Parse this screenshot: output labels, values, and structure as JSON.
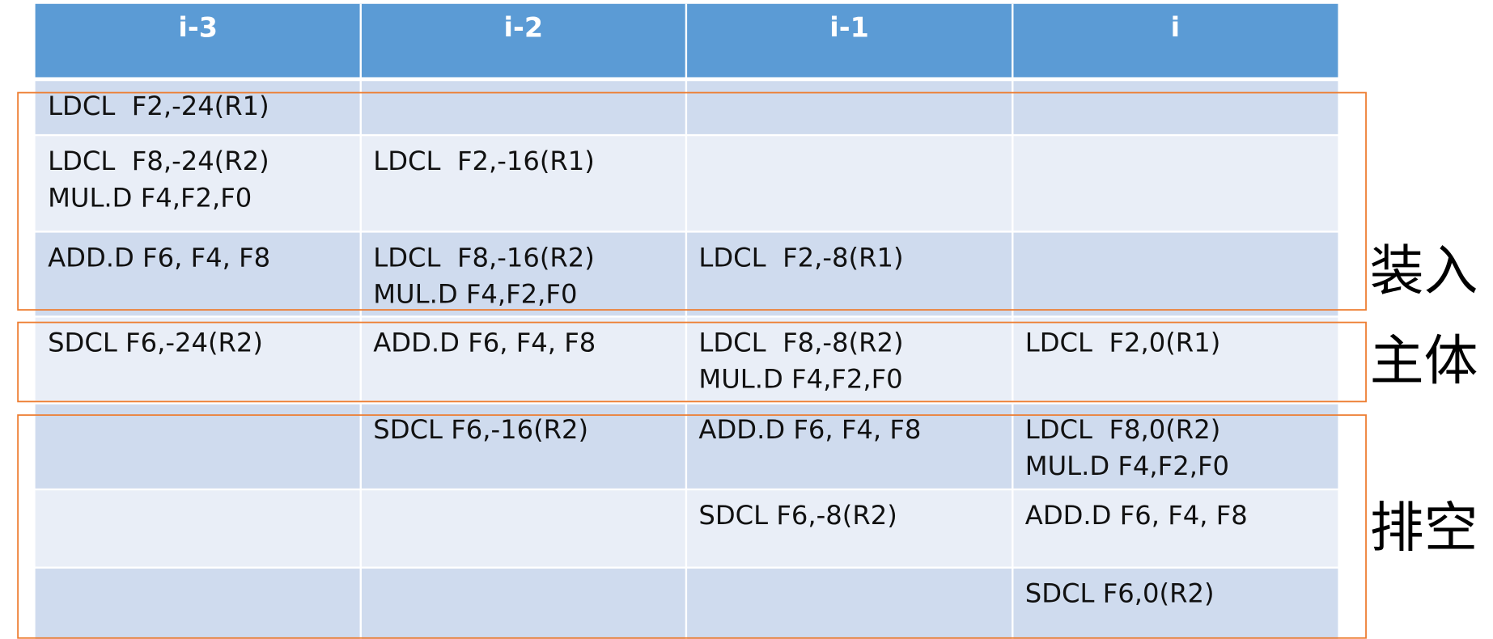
{
  "table": {
    "header": [
      "i-3",
      "i-2",
      "i-1",
      "i"
    ],
    "rows": [
      [
        [
          "LDCL  F2,-24(R1)"
        ],
        [],
        [],
        []
      ],
      [
        [
          "LDCL  F8,-24(R2)",
          "MUL.D F4,F2,F0"
        ],
        [
          "LDCL  F2,-16(R1)"
        ],
        [],
        []
      ],
      [
        [
          "ADD.D F6, F4, F8"
        ],
        [
          "LDCL  F8,-16(R2)",
          "MUL.D F4,F2,F0"
        ],
        [
          "LDCL  F2,-8(R1)"
        ],
        []
      ],
      [
        [
          "SDCL F6,-24(R2)"
        ],
        [
          "ADD.D F6, F4, F8"
        ],
        [
          "LDCL  F8,-8(R2)",
          "MUL.D F4,F2,F0"
        ],
        [
          "LDCL  F2,0(R1)"
        ]
      ],
      [
        [],
        [
          "SDCL F6,-16(R2)"
        ],
        [
          "ADD.D F6, F4, F8"
        ],
        [
          "LDCL  F8,0(R2)",
          "MUL.D F4,F2,F0"
        ]
      ],
      [
        [],
        [],
        [
          "SDCL F6,-8(R2)"
        ],
        [
          "ADD.D F6, F4, F8"
        ]
      ],
      [
        [],
        [],
        [],
        [
          "SDCL F6,0(R2)"
        ]
      ]
    ]
  },
  "groups": [
    {
      "label": "装入"
    },
    {
      "label": "主体"
    },
    {
      "label": "排空"
    }
  ]
}
